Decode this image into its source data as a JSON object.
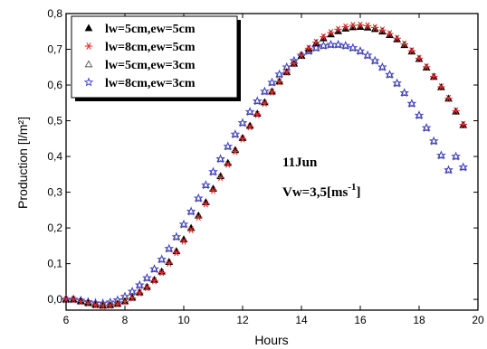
{
  "chart_data": {
    "type": "scatter",
    "xlabel": "Hours",
    "ylabel": "Production [l/m²]",
    "xlim": [
      6,
      20
    ],
    "ylim": [
      -0.03,
      0.8
    ],
    "x_ticks": [
      6,
      8,
      10,
      12,
      14,
      16,
      18,
      20
    ],
    "x_tick_labels": [
      "6",
      "8",
      "10",
      "12",
      "14",
      "16",
      "18",
      "20"
    ],
    "y_ticks": [
      0.0,
      0.1,
      0.2,
      0.3,
      0.4,
      0.5,
      0.6,
      0.7,
      0.8
    ],
    "y_tick_labels": [
      "0,0",
      "0,1",
      "0,2",
      "0,3",
      "0,4",
      "0,5",
      "0,6",
      "0,7",
      "0,8"
    ],
    "grid": false,
    "legend_position": "top-left",
    "annotation_date": "11Jun",
    "annotation_vw": "Vw=3,5[ms",
    "annotation_vw_sup": "-1",
    "annotation_vw_close": "]",
    "series": [
      {
        "name": "lw=5cm,ew=5cm",
        "marker": "triangle-filled",
        "color": "#000000",
        "x": [
          6.0,
          6.25,
          6.5,
          6.75,
          7.0,
          7.25,
          7.5,
          7.75,
          8.0,
          8.25,
          8.5,
          8.75,
          9.0,
          9.25,
          9.5,
          9.75,
          10.0,
          10.25,
          10.5,
          10.75,
          11.0,
          11.25,
          11.5,
          11.75,
          12.0,
          12.25,
          12.5,
          12.75,
          13.0,
          13.25,
          13.5,
          13.75,
          14.0,
          14.25,
          14.5,
          14.75,
          15.0,
          15.25,
          15.5,
          15.75,
          16.0,
          16.25,
          16.5,
          16.75,
          17.0,
          17.25,
          17.5,
          17.75,
          18.0,
          18.25,
          18.5,
          18.75,
          19.0,
          19.25,
          19.5
        ],
        "y": [
          0.0,
          0.0,
          -0.005,
          -0.01,
          -0.015,
          -0.017,
          -0.016,
          -0.012,
          -0.005,
          0.005,
          0.02,
          0.035,
          0.055,
          0.078,
          0.105,
          0.135,
          0.168,
          0.2,
          0.235,
          0.272,
          0.31,
          0.345,
          0.382,
          0.418,
          0.452,
          0.486,
          0.52,
          0.552,
          0.582,
          0.61,
          0.636,
          0.66,
          0.682,
          0.701,
          0.717,
          0.731,
          0.742,
          0.751,
          0.758,
          0.762,
          0.763,
          0.761,
          0.757,
          0.75,
          0.74,
          0.728,
          0.712,
          0.694,
          0.673,
          0.649,
          0.623,
          0.594,
          0.562,
          0.526,
          0.488
        ]
      },
      {
        "name": "lw=8cm,ew=5cm",
        "marker": "asterisk",
        "color": "#e03030",
        "x": [
          6.0,
          6.25,
          6.5,
          6.75,
          7.0,
          7.25,
          7.5,
          7.75,
          8.0,
          8.25,
          8.5,
          8.75,
          9.0,
          9.25,
          9.5,
          9.75,
          10.0,
          10.25,
          10.5,
          10.75,
          11.0,
          11.25,
          11.5,
          11.75,
          12.0,
          12.25,
          12.5,
          12.75,
          13.0,
          13.25,
          13.5,
          13.75,
          14.0,
          14.25,
          14.5,
          14.75,
          15.0,
          15.25,
          15.5,
          15.75,
          16.0,
          16.25,
          16.5,
          16.75,
          17.0,
          17.25,
          17.5,
          17.75,
          18.0,
          18.25,
          18.5,
          18.75,
          19.0,
          19.25,
          19.5
        ],
        "y": [
          0.0,
          0.0,
          -0.006,
          -0.011,
          -0.016,
          -0.018,
          -0.017,
          -0.013,
          -0.006,
          0.004,
          0.018,
          0.033,
          0.052,
          0.075,
          0.101,
          0.131,
          0.163,
          0.195,
          0.23,
          0.267,
          0.305,
          0.341,
          0.378,
          0.414,
          0.449,
          0.483,
          0.517,
          0.549,
          0.58,
          0.609,
          0.636,
          0.66,
          0.683,
          0.703,
          0.72,
          0.735,
          0.747,
          0.756,
          0.763,
          0.767,
          0.768,
          0.766,
          0.761,
          0.754,
          0.744,
          0.731,
          0.715,
          0.696,
          0.675,
          0.651,
          0.624,
          0.595,
          0.563,
          0.528,
          0.49
        ]
      },
      {
        "name": "lw=5cm,ew=3cm",
        "marker": "triangle-open",
        "color": "#555555",
        "x": [
          6.0,
          6.25,
          6.5,
          6.75,
          7.0,
          7.25,
          7.5,
          7.75,
          8.0,
          8.25,
          8.5,
          8.75,
          9.0,
          9.25,
          9.5,
          9.75,
          10.0,
          10.25,
          10.5,
          10.75,
          11.0,
          11.25,
          11.5,
          11.75,
          12.0,
          12.25,
          12.5,
          12.75,
          13.0,
          13.25,
          13.5,
          13.75,
          14.0,
          14.25,
          14.5,
          14.75,
          15.0,
          15.25,
          15.5,
          15.75,
          16.0,
          16.25,
          16.5,
          16.75,
          17.0,
          17.25,
          17.5,
          17.75,
          18.0,
          18.25,
          18.5,
          18.75,
          19.0,
          19.25,
          19.5
        ],
        "y": [
          0.0,
          0.0,
          -0.003,
          -0.007,
          -0.01,
          -0.011,
          -0.008,
          -0.002,
          0.008,
          0.022,
          0.04,
          0.06,
          0.085,
          0.112,
          0.142,
          0.175,
          0.21,
          0.246,
          0.283,
          0.32,
          0.357,
          0.393,
          0.428,
          0.462,
          0.494,
          0.525,
          0.555,
          0.582,
          0.607,
          0.63,
          0.65,
          0.668,
          0.683,
          0.695,
          0.704,
          0.71,
          0.713,
          0.713,
          0.71,
          0.704,
          0.695,
          0.683,
          0.668,
          0.65,
          0.629,
          0.605,
          0.578,
          0.548,
          0.515,
          0.48,
          0.443,
          0.403,
          0.362,
          0.4,
          0.37
        ]
      },
      {
        "name": "lw=8cm,ew=3cm",
        "marker": "star-open",
        "color": "#3a3ad8",
        "x": [
          6.0,
          6.25,
          6.5,
          6.75,
          7.0,
          7.25,
          7.5,
          7.75,
          8.0,
          8.25,
          8.5,
          8.75,
          9.0,
          9.25,
          9.5,
          9.75,
          10.0,
          10.25,
          10.5,
          10.75,
          11.0,
          11.25,
          11.5,
          11.75,
          12.0,
          12.25,
          12.5,
          12.75,
          13.0,
          13.25,
          13.5,
          13.75,
          14.0,
          14.25,
          14.5,
          14.75,
          15.0,
          15.25,
          15.5,
          15.75,
          16.0,
          16.25,
          16.5,
          16.75,
          17.0,
          17.25,
          17.5,
          17.75,
          18.0,
          18.25,
          18.5,
          18.75,
          19.0,
          19.25,
          19.5
        ],
        "y": [
          0.0,
          0.0,
          -0.003,
          -0.007,
          -0.01,
          -0.011,
          -0.008,
          -0.002,
          0.008,
          0.022,
          0.04,
          0.06,
          0.085,
          0.112,
          0.142,
          0.175,
          0.21,
          0.246,
          0.283,
          0.32,
          0.357,
          0.393,
          0.428,
          0.462,
          0.494,
          0.525,
          0.555,
          0.582,
          0.607,
          0.63,
          0.65,
          0.668,
          0.683,
          0.695,
          0.704,
          0.71,
          0.713,
          0.713,
          0.71,
          0.704,
          0.695,
          0.683,
          0.668,
          0.65,
          0.629,
          0.605,
          0.578,
          0.548,
          0.515,
          0.48,
          0.443,
          0.403,
          0.362,
          0.4,
          0.37
        ]
      }
    ]
  }
}
